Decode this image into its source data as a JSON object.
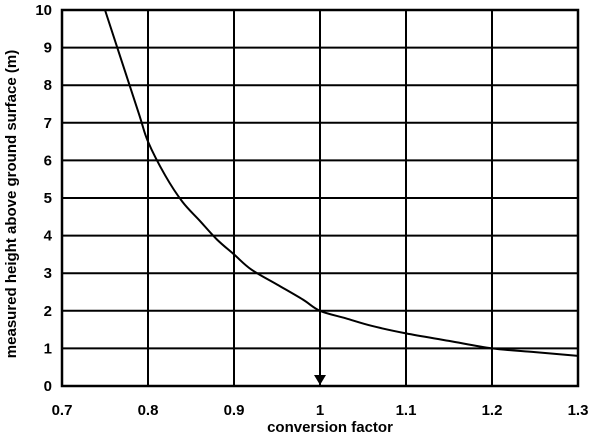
{
  "chart_data": {
    "type": "line",
    "title": "",
    "xlabel": "conversion factor",
    "ylabel": "measured height above ground surface (m)",
    "xlim": [
      0.7,
      1.3
    ],
    "ylim": [
      0,
      10
    ],
    "xticks": [
      "0.7",
      "0.8",
      "0.9",
      "1",
      "1.1",
      "1.2",
      "1.3"
    ],
    "yticks": [
      "0",
      "1",
      "2",
      "3",
      "4",
      "5",
      "6",
      "7",
      "8",
      "9",
      "10"
    ],
    "grid": true,
    "legend": "none",
    "line_color": "#000000",
    "series": [
      {
        "x": [
          0.75,
          0.77,
          0.79,
          0.8,
          0.82,
          0.84,
          0.86,
          0.88,
          0.9,
          0.92,
          0.95,
          0.98,
          1.0,
          1.03,
          1.06,
          1.1,
          1.15,
          1.2,
          1.25,
          1.3
        ],
        "y": [
          10.0,
          8.6,
          7.2,
          6.5,
          5.6,
          4.9,
          4.4,
          3.9,
          3.5,
          3.1,
          2.7,
          2.3,
          2.0,
          1.8,
          1.6,
          1.4,
          1.2,
          1.0,
          0.9,
          0.8
        ]
      }
    ],
    "annotations": [
      {
        "type": "arrow",
        "x": 1.0,
        "y_from": 2.0,
        "y_to": 0.0
      }
    ]
  }
}
